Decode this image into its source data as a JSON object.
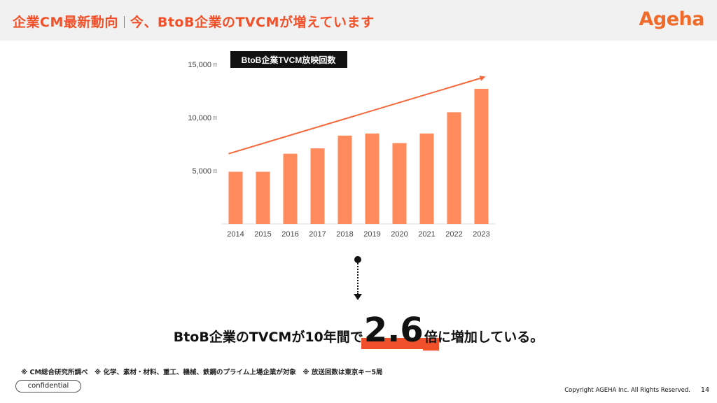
{
  "header": {
    "title_main": "企業CM最新動向",
    "title_sub": "今、BtoB企業のTVCMが増えています",
    "logo": "Ageha"
  },
  "chart_data": {
    "type": "bar",
    "title": "BtoB企業TVCM放映回数",
    "categories": [
      "2014",
      "2015",
      "2016",
      "2017",
      "2018",
      "2019",
      "2020",
      "2021",
      "2022",
      "2023"
    ],
    "values": [
      4900,
      4900,
      6600,
      7100,
      8300,
      8500,
      7600,
      8500,
      10500,
      12700
    ],
    "ylim": [
      0,
      15000
    ],
    "yticks": [
      5000,
      10000,
      15000
    ],
    "ytick_labels": [
      "5,000",
      "10,000",
      "15,000"
    ],
    "ytick_unit": "回",
    "bar_color": "#ff8a5c",
    "trend_color": "#f4683a",
    "trend_line": {
      "start": 6600,
      "end": 13800
    },
    "grid": false,
    "legend": "none"
  },
  "message": {
    "prefix": "BtoB企業のTVCMが10年間で",
    "highlight_value": "2.6",
    "highlight_unit": "倍",
    "suffix": "に増加している。"
  },
  "notes": "※ CM総合研究所調べ　※ 化学、素材・材料、重工、機械、鉄鋼のプライム上場企業が対象　※ 放送回数は東京キー5局",
  "footer": {
    "confidential": "confidential",
    "copyright": "Copyright AGEHA Inc. All Rights Reserved.",
    "page": "14"
  },
  "colors": {
    "accent": "#f0502a",
    "header_bg": "#f1f1f1"
  }
}
